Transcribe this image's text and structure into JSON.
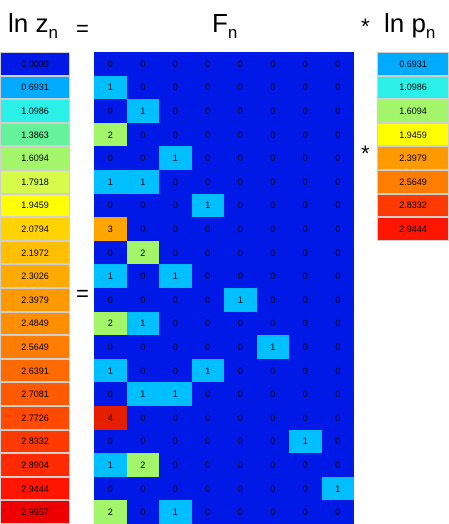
{
  "headers": {
    "lnz_main": "ln z",
    "lnz_sub": "n",
    "f_main": "F",
    "f_sub": "n",
    "lnp_main": "ln p",
    "lnp_sub": "n"
  },
  "operators": {
    "equals": "=",
    "times": "*"
  },
  "ln_z": [
    {
      "label": "0.0000",
      "color": "#0019e6"
    },
    {
      "label": "0.6931",
      "color": "#00aaff"
    },
    {
      "label": "1.0986",
      "color": "#2af0e8"
    },
    {
      "label": "1.3863",
      "color": "#66f29a"
    },
    {
      "label": "1.6094",
      "color": "#a3f56a"
    },
    {
      "label": "1.7918",
      "color": "#d6fb4a"
    },
    {
      "label": "1.9459",
      "color": "#ffff00"
    },
    {
      "label": "2.0794",
      "color": "#ffd200"
    },
    {
      "label": "2.1972",
      "color": "#ffbe00"
    },
    {
      "label": "2.3026",
      "color": "#ffaa00"
    },
    {
      "label": "2.3979",
      "color": "#ff9900"
    },
    {
      "label": "2.4849",
      "color": "#ff8e00"
    },
    {
      "label": "2.5649",
      "color": "#ff7d00"
    },
    {
      "label": "2.6391",
      "color": "#ff6a00"
    },
    {
      "label": "2.7081",
      "color": "#ff5a00"
    },
    {
      "label": "2.7726",
      "color": "#ff4a00"
    },
    {
      "label": "2.8332",
      "color": "#ff3a00"
    },
    {
      "label": "2.8904",
      "color": "#ff2a00"
    },
    {
      "label": "2.9444",
      "color": "#ff1500"
    },
    {
      "label": "2.9957",
      "color": "#ee0000"
    }
  ],
  "ln_p": [
    {
      "label": "0.6931",
      "color": "#00aaff"
    },
    {
      "label": "1.0986",
      "color": "#2af0e8"
    },
    {
      "label": "1.6094",
      "color": "#a3f56a"
    },
    {
      "label": "1.9459",
      "color": "#ffff00"
    },
    {
      "label": "2.3979",
      "color": "#ff9900"
    },
    {
      "label": "2.5649",
      "color": "#ff7d00"
    },
    {
      "label": "2.8332",
      "color": "#ff3a00"
    },
    {
      "label": "2.9444",
      "color": "#ff1500"
    }
  ],
  "f_matrix": {
    "rows": [
      [
        0,
        0,
        0,
        0,
        0,
        0,
        0,
        0
      ],
      [
        1,
        0,
        0,
        0,
        0,
        0,
        0,
        0
      ],
      [
        0,
        1,
        0,
        0,
        0,
        0,
        0,
        0
      ],
      [
        2,
        0,
        0,
        0,
        0,
        0,
        0,
        0
      ],
      [
        0,
        0,
        1,
        0,
        0,
        0,
        0,
        0
      ],
      [
        1,
        1,
        0,
        0,
        0,
        0,
        0,
        0
      ],
      [
        0,
        0,
        0,
        1,
        0,
        0,
        0,
        0
      ],
      [
        3,
        0,
        0,
        0,
        0,
        0,
        0,
        0
      ],
      [
        0,
        2,
        0,
        0,
        0,
        0,
        0,
        0
      ],
      [
        1,
        0,
        1,
        0,
        0,
        0,
        0,
        0
      ],
      [
        0,
        0,
        0,
        0,
        1,
        0,
        0,
        0
      ],
      [
        2,
        1,
        0,
        0,
        0,
        0,
        0,
        0
      ],
      [
        0,
        0,
        0,
        0,
        0,
        1,
        0,
        0
      ],
      [
        1,
        0,
        0,
        1,
        0,
        0,
        0,
        0
      ],
      [
        0,
        1,
        1,
        0,
        0,
        0,
        0,
        0
      ],
      [
        4,
        0,
        0,
        0,
        0,
        0,
        0,
        0
      ],
      [
        0,
        0,
        0,
        0,
        0,
        0,
        1,
        0
      ],
      [
        1,
        2,
        0,
        0,
        0,
        0,
        0,
        0
      ],
      [
        0,
        0,
        0,
        0,
        0,
        0,
        0,
        1
      ],
      [
        2,
        0,
        1,
        0,
        0,
        0,
        0,
        0
      ]
    ],
    "value_colors": {
      "0": "#0019e6",
      "1": "#00bfff",
      "2": "#a3f56a",
      "3": "#ffa500",
      "4": "#e61e00"
    }
  }
}
